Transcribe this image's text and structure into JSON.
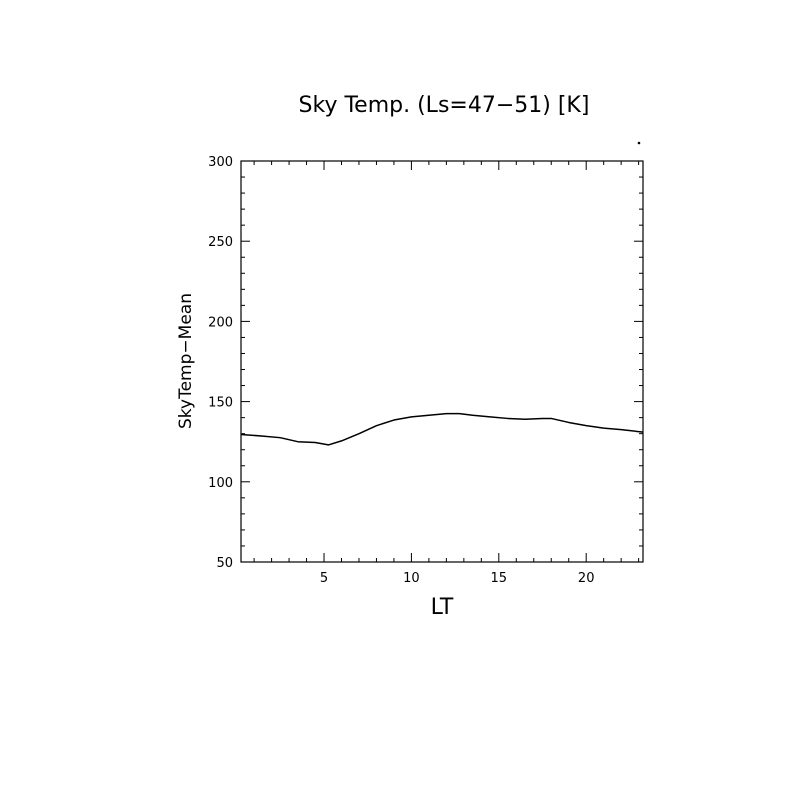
{
  "chart_data": {
    "type": "line",
    "title": "Sky Temp. (Ls=47−51) [K]",
    "xlabel": "LT",
    "ylabel": "SkyTemp−Mean",
    "xlim": [
      0.25,
      23.25
    ],
    "ylim": [
      50,
      300
    ],
    "xticks": [
      5,
      10,
      15,
      20
    ],
    "yticks": [
      50,
      100,
      150,
      200,
      250,
      300
    ],
    "grid": false,
    "legend": "none",
    "line_color": "#000000",
    "series": [
      {
        "x": [
          0.25,
          1.5,
          2.5,
          3.5,
          4.5,
          5.25,
          6,
          7,
          8,
          9,
          10,
          11,
          12,
          12.75,
          13.5,
          14.5,
          15.5,
          16.5,
          17.5,
          18,
          19,
          20,
          21,
          22,
          23.25
        ],
        "values": [
          129.5,
          128.5,
          127.5,
          125,
          124.5,
          123,
          125.5,
          130,
          135,
          138.5,
          140.5,
          141.5,
          142.5,
          142.5,
          141.5,
          140.5,
          139.5,
          139,
          139.5,
          139.5,
          137,
          135,
          133.5,
          132.5,
          131
        ]
      }
    ]
  }
}
